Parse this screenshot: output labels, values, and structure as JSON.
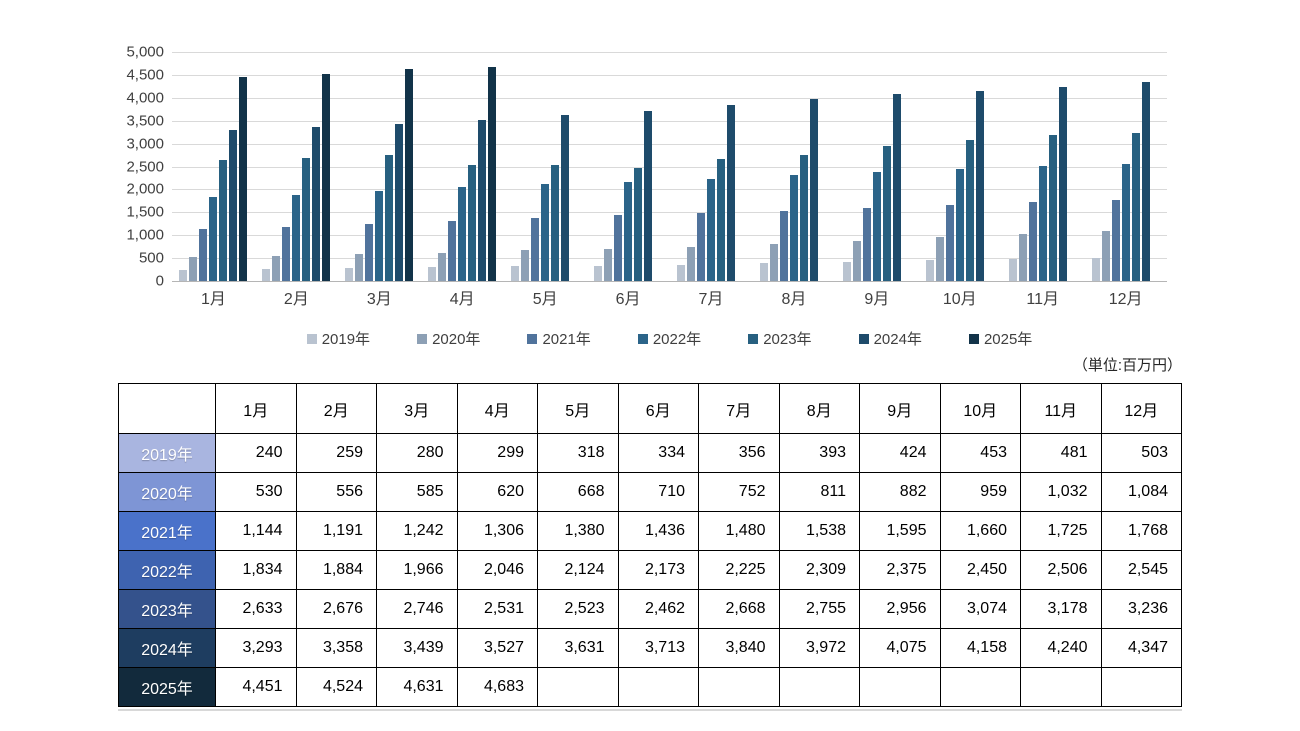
{
  "unit_label": "（単位:百万円）",
  "chart_data": {
    "type": "bar",
    "title": "",
    "xlabel": "",
    "ylabel": "",
    "ylim": [
      0,
      5000
    ],
    "ytick_step": 500,
    "grid": true,
    "legend_position": "bottom",
    "categories": [
      "1月",
      "2月",
      "3月",
      "4月",
      "5月",
      "6月",
      "7月",
      "8月",
      "9月",
      "10月",
      "11月",
      "12月"
    ],
    "series": [
      {
        "name": "2019年",
        "color": "#b9c3d0",
        "values": [
          240,
          259,
          280,
          299,
          318,
          334,
          356,
          393,
          424,
          453,
          481,
          503
        ]
      },
      {
        "name": "2020年",
        "color": "#8da0b5",
        "values": [
          530,
          556,
          585,
          620,
          668,
          710,
          752,
          811,
          882,
          959,
          1032,
          1084
        ]
      },
      {
        "name": "2021年",
        "color": "#50739c",
        "values": [
          1144,
          1191,
          1242,
          1306,
          1380,
          1436,
          1480,
          1538,
          1595,
          1660,
          1725,
          1768
        ]
      },
      {
        "name": "2022年",
        "color": "#2b6489",
        "values": [
          1834,
          1884,
          1966,
          2046,
          2124,
          2173,
          2225,
          2309,
          2375,
          2450,
          2506,
          2545
        ]
      },
      {
        "name": "2023年",
        "color": "#276080",
        "values": [
          2633,
          2676,
          2746,
          2531,
          2523,
          2462,
          2668,
          2755,
          2956,
          3074,
          3178,
          3236
        ]
      },
      {
        "name": "2024年",
        "color": "#1e4b6b",
        "values": [
          3293,
          3358,
          3439,
          3527,
          3631,
          3713,
          3840,
          3972,
          4075,
          4158,
          4240,
          4347
        ]
      },
      {
        "name": "2025年",
        "color": "#123349",
        "values": [
          4451,
          4524,
          4631,
          4683,
          null,
          null,
          null,
          null,
          null,
          null,
          null,
          null
        ]
      }
    ]
  },
  "table": {
    "corner_header": "",
    "row_header_colors": [
      "#a9b5e0",
      "#7e95d5",
      "#4a72ca",
      "#3e63b0",
      "#34528c",
      "#1e3d60",
      "#122a3c"
    ]
  }
}
